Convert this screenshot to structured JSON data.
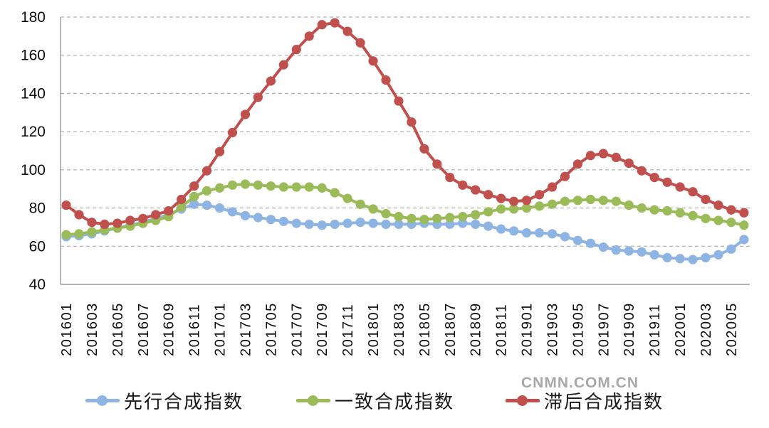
{
  "watermark": "CNMN.COM.CN",
  "chart_data": {
    "type": "line",
    "title": "",
    "xlabel": "",
    "ylabel": "",
    "ylim": [
      40,
      180
    ],
    "yticks": [
      40,
      60,
      80,
      100,
      120,
      140,
      160,
      180
    ],
    "grid": "horizontal-dashed",
    "legend_position": "bottom",
    "marker": "circle",
    "x": [
      "201601",
      "201602",
      "201603",
      "201604",
      "201605",
      "201606",
      "201607",
      "201608",
      "201609",
      "201610",
      "201611",
      "201612",
      "201701",
      "201702",
      "201703",
      "201704",
      "201705",
      "201706",
      "201707",
      "201708",
      "201709",
      "201710",
      "201711",
      "201712",
      "201801",
      "201802",
      "201803",
      "201804",
      "201805",
      "201806",
      "201807",
      "201808",
      "201809",
      "201810",
      "201811",
      "201812",
      "201901",
      "201902",
      "201903",
      "201904",
      "201905",
      "201906",
      "201907",
      "201908",
      "201909",
      "201910",
      "201911",
      "201912",
      "202001",
      "202002",
      "202003",
      "202004",
      "202005",
      "202006"
    ],
    "x_tick_labels": [
      "201601",
      "201603",
      "201605",
      "201607",
      "201609",
      "201611",
      "201701",
      "201703",
      "201705",
      "201707",
      "201709",
      "201711",
      "201801",
      "201803",
      "201805",
      "201807",
      "201809",
      "201811",
      "201901",
      "201903",
      "201905",
      "201907",
      "201909",
      "201911",
      "202001",
      "202003",
      "202005"
    ],
    "series": [
      {
        "name": "先行合成指数",
        "color": "#8eb4e3",
        "values": [
          65,
          65.5,
          66.5,
          68,
          69.5,
          71,
          72.5,
          74.5,
          76.5,
          79.5,
          82,
          81.5,
          80,
          78,
          76,
          75,
          74,
          73,
          72,
          71.5,
          71,
          71.5,
          72,
          72.5,
          72,
          71.5,
          71.5,
          71.5,
          72,
          71.5,
          71.5,
          72,
          71.5,
          70.5,
          69,
          68,
          67,
          67,
          66.5,
          65,
          63,
          61.5,
          59.5,
          58,
          57.5,
          57,
          55.5,
          54,
          53.5,
          53,
          54,
          55.5,
          58.5,
          63.5
        ]
      },
      {
        "name": "一致合成指数",
        "color": "#9bbb59",
        "values": [
          66,
          66.5,
          67.5,
          68.5,
          69.5,
          70.5,
          72,
          73.5,
          75.5,
          80.5,
          86,
          89,
          90.5,
          92,
          92.5,
          92,
          91.5,
          91,
          91,
          91,
          90.5,
          88,
          85,
          82,
          79.5,
          77,
          75.5,
          74.5,
          74,
          74.5,
          75,
          75.5,
          76.5,
          78,
          79.5,
          79.5,
          80,
          81,
          82,
          83.5,
          84,
          84.5,
          84,
          83.5,
          81.5,
          80,
          79,
          78.5,
          77.5,
          76,
          74.5,
          73.5,
          72.5,
          71
        ]
      },
      {
        "name": "滞后合成指数",
        "color": "#c0504d",
        "values": [
          81.5,
          76.5,
          72.5,
          71.5,
          72,
          73.5,
          74.5,
          76.5,
          78.5,
          84.5,
          91.5,
          99.5,
          109.5,
          119.5,
          129,
          138,
          146.5,
          155,
          163,
          170,
          176,
          177,
          172.5,
          166.5,
          157,
          147,
          136,
          125,
          111,
          103,
          96,
          92,
          89.5,
          87,
          85,
          83.5,
          84,
          87,
          91,
          96.5,
          103,
          107.5,
          108.5,
          106.5,
          103.5,
          99.5,
          96,
          93.5,
          91,
          88.5,
          84.5,
          81.5,
          79,
          77.5
        ]
      }
    ]
  }
}
